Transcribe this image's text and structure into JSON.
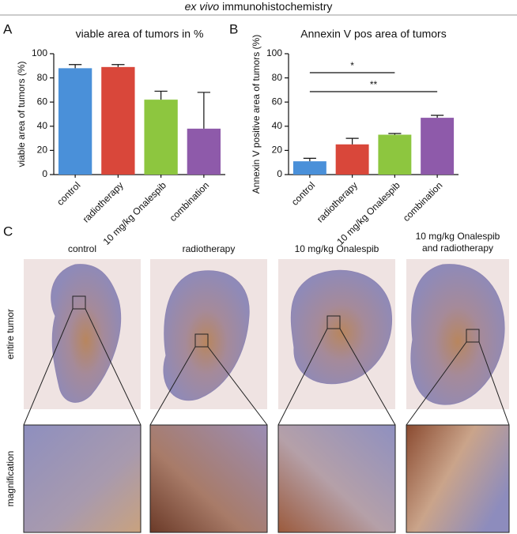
{
  "figure": {
    "title_italic": "ex vivo",
    "title": "immunohistochemistry",
    "panels": [
      "A",
      "B",
      "C"
    ]
  },
  "chart_data": [
    {
      "type": "bar",
      "title": "viable area of tumors in %",
      "y_label": "viable area of tumors (%)",
      "categories": [
        "control",
        "radiotherapy",
        "10 mg/kg Onalespib",
        "combination"
      ],
      "values": [
        88,
        89,
        62,
        38
      ],
      "errors": [
        3,
        2,
        7,
        30
      ],
      "colors": [
        "#4a90d9",
        "#d9473a",
        "#8dc63f",
        "#8e5aaa"
      ],
      "ylim": [
        0,
        100
      ],
      "yticks": [
        0,
        20,
        40,
        60,
        80,
        100
      ]
    },
    {
      "type": "bar",
      "title": "Annexin V pos area of tumors",
      "y_label": "Annexin V positive area of tumors (%)",
      "categories": [
        "control",
        "radiotherapy",
        "10 mg/kg Onalespib",
        "combination"
      ],
      "values": [
        11,
        25,
        33,
        47
      ],
      "errors": [
        2.5,
        5,
        1,
        2
      ],
      "colors": [
        "#4a90d9",
        "#d9473a",
        "#8dc63f",
        "#8e5aaa"
      ],
      "ylim": [
        0,
        100
      ],
      "yticks": [
        0,
        20,
        40,
        60,
        80,
        100
      ],
      "annotations": [
        "*",
        "**"
      ]
    }
  ],
  "panel_c": {
    "columns": [
      "control",
      "radiotherapy",
      "10 mg/kg Onalespib",
      [
        "10 mg/kg Onalespib",
        "and radiotherapy"
      ]
    ],
    "rows": [
      "entire tumor",
      "magnification"
    ]
  }
}
